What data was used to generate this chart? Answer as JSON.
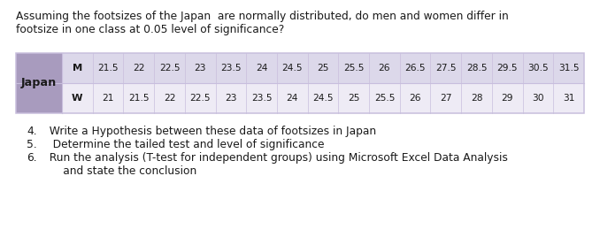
{
  "title_line1": "Assuming the footsizes of the Japan  are normally distributed, do men and women differ in",
  "title_line2": "footsize in one class at 0.05 level of significance?",
  "japan_label": "Japan",
  "row_M_label": "M",
  "row_W_label": "W",
  "row_M_values": [
    "21.5",
    "22",
    "22.5",
    "23",
    "23.5",
    "24",
    "24.5",
    "25",
    "25.5",
    "26",
    "26.5",
    "27.5",
    "28.5",
    "29.5",
    "30.5",
    "31.5"
  ],
  "row_W_values": [
    "21",
    "21.5",
    "22",
    "22.5",
    "23",
    "23.5",
    "24",
    "24.5",
    "25",
    "25.5",
    "26",
    "27",
    "28",
    "29",
    "30",
    "31"
  ],
  "list_items": [
    {
      "num": "4.",
      "text": "  Write a Hypothesis between these data of footsizes in Japan",
      "cont": null
    },
    {
      "num": "5.",
      "text": "   Determine the tailed test and level of significance",
      "cont": null
    },
    {
      "num": "6.",
      "text": "  Run the analysis (T-test for independent groups) using Microsoft Excel Data Analysis",
      "cont": "      and state the conclusion"
    }
  ],
  "japan_bg": "#a89bbe",
  "row_M_bg": "#dcd8ea",
  "row_W_bg": "#eeebf5",
  "border_color": "#c8bedd",
  "text_color": "#1a1a1a",
  "bg_color": "#ffffff",
  "title_fontsize": 8.8,
  "table_fontsize": 8.2,
  "list_fontsize": 8.8
}
